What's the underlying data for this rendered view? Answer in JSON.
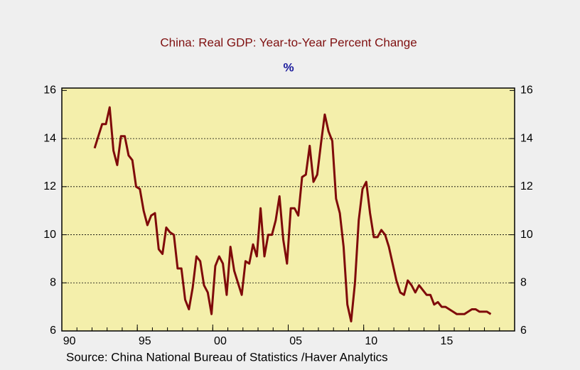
{
  "chart_data": {
    "type": "line",
    "title": "China: Real GDP: Year-to-Year Percent Change",
    "subtitle": "%",
    "source": "Source:  China National Bureau of Statistics /Haver Analytics",
    "xlim": [
      1990,
      2020
    ],
    "xticks": [
      {
        "value": 1990,
        "label": "90"
      },
      {
        "value": 1995,
        "label": "95"
      },
      {
        "value": 2000,
        "label": "00"
      },
      {
        "value": 2005,
        "label": "05"
      },
      {
        "value": 2010,
        "label": "10"
      },
      {
        "value": 2015,
        "label": "15"
      }
    ],
    "ylim": [
      6,
      16.1
    ],
    "yticks": [
      6,
      8,
      10,
      12,
      14,
      16
    ],
    "grid": true,
    "x": [
      1992.17,
      1992.42,
      1992.67,
      1992.92,
      1993.17,
      1993.42,
      1993.67,
      1993.92,
      1994.17,
      1994.42,
      1994.67,
      1994.92,
      1995.17,
      1995.42,
      1995.67,
      1995.92,
      1996.17,
      1996.42,
      1996.67,
      1996.92,
      1997.17,
      1997.42,
      1997.67,
      1997.92,
      1998.17,
      1998.42,
      1998.67,
      1998.92,
      1999.17,
      1999.42,
      1999.67,
      1999.92,
      2000.17,
      2000.42,
      2000.67,
      2000.92,
      2001.17,
      2001.42,
      2001.67,
      2001.92,
      2002.17,
      2002.42,
      2002.67,
      2002.92,
      2003.17,
      2003.42,
      2003.67,
      2003.92,
      2004.17,
      2004.42,
      2004.67,
      2004.92,
      2005.17,
      2005.42,
      2005.67,
      2005.92,
      2006.17,
      2006.42,
      2006.67,
      2006.92,
      2007.17,
      2007.42,
      2007.67,
      2007.92,
      2008.17,
      2008.42,
      2008.67,
      2008.92,
      2009.17,
      2009.42,
      2009.67,
      2009.92,
      2010.17,
      2010.42,
      2010.67,
      2010.92,
      2011.17,
      2011.42,
      2011.67,
      2011.92,
      2012.17,
      2012.42,
      2012.67,
      2012.92,
      2013.17,
      2013.42,
      2013.67,
      2013.92,
      2014.17,
      2014.42,
      2014.67,
      2014.92,
      2015.17,
      2015.42,
      2015.67,
      2015.92,
      2016.17,
      2016.42,
      2016.67,
      2016.92,
      2017.17,
      2017.42,
      2017.67,
      2017.92,
      2018.17,
      2018.42
    ],
    "series": [
      {
        "name": "Real GDP",
        "color": "#7f0a0a",
        "values": [
          13.6,
          14.1,
          14.6,
          14.6,
          15.3,
          13.5,
          12.9,
          14.1,
          14.1,
          13.3,
          13.1,
          12.0,
          11.9,
          11.0,
          10.4,
          10.8,
          10.9,
          9.4,
          9.2,
          10.3,
          10.1,
          10.0,
          8.6,
          8.6,
          7.3,
          6.9,
          7.8,
          9.1,
          8.9,
          7.9,
          7.6,
          6.7,
          8.7,
          9.1,
          8.8,
          7.5,
          9.5,
          8.5,
          8.0,
          7.5,
          8.9,
          8.8,
          9.6,
          9.1,
          11.1,
          9.1,
          10.0,
          10.0,
          10.6,
          11.6,
          9.8,
          8.8,
          11.1,
          11.1,
          10.8,
          12.4,
          12.5,
          13.7,
          12.2,
          12.5,
          13.8,
          15.0,
          14.3,
          13.9,
          11.5,
          10.9,
          9.5,
          7.1,
          6.4,
          8.0,
          10.6,
          11.9,
          12.2,
          10.9,
          9.9,
          9.9,
          10.2,
          10.0,
          9.5,
          8.8,
          8.1,
          7.6,
          7.5,
          8.1,
          7.9,
          7.6,
          7.9,
          7.7,
          7.5,
          7.5,
          7.1,
          7.2,
          7.0,
          7.0,
          6.9,
          6.8,
          6.7,
          6.7,
          6.7,
          6.8,
          6.9,
          6.9,
          6.8,
          6.8,
          6.8,
          6.7
        ]
      }
    ]
  }
}
